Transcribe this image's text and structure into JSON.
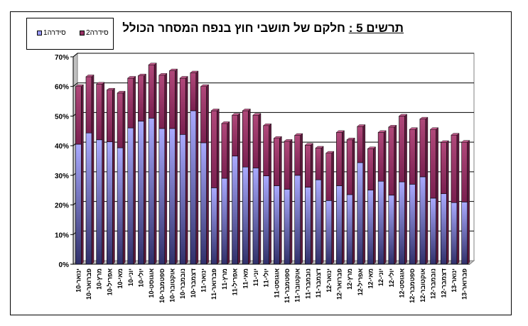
{
  "chart_data": {
    "type": "bar",
    "stacked": true,
    "title_prefix": "תרשים 5",
    "title_sep": " :",
    "title_text": " חלקם של תושבי חוץ בנפח המסחר הכולל",
    "categories": [
      "ינואר-10",
      "פברואר-10",
      "מרץ-10",
      "אפריל-10",
      "מאי-10",
      "יוני-10",
      "יולי-10",
      "אוגוסט-10",
      "ספטמבר-10",
      "אוקטובר-10",
      "נובמבר-10",
      "דצמבר-10",
      "ינואר-11",
      "פברואר-11",
      "מרץ-11",
      "אפריל-11",
      "מאי-11",
      "יוני-11",
      "יולי-11",
      "אוגוסט-11",
      "ספטמבר-11",
      "אוקטובר-11",
      "נובמבר-11",
      "דצמבר-11",
      "ינואר-12",
      "פברואר-12",
      "מרץ-12",
      "אפריל-12",
      "מאי-12",
      "יוני-12",
      "יולי-12",
      "אוגוסט-12",
      "ספטמבר-12",
      "אוקטובר-12",
      "נובמבר-12",
      "דצמבר-12",
      "ינואר-13",
      "פברואר-13"
    ],
    "series": [
      {
        "name": "סידרה1",
        "color": "#9999ff",
        "values": [
          40.5,
          44.3,
          42.0,
          41.3,
          39.3,
          46.0,
          48.3,
          49.3,
          45.8,
          45.8,
          43.8,
          51.8,
          41.0,
          25.8,
          29.0,
          36.5,
          32.8,
          32.5,
          29.8,
          26.5,
          25.3,
          30.0,
          26.0,
          28.5,
          21.5,
          26.5,
          23.5,
          34.3,
          25.0,
          28.0,
          23.3,
          27.8,
          27.0,
          29.5,
          22.3,
          23.8,
          20.8,
          21.0
        ]
      },
      {
        "name": "סידרה2",
        "color": "#993366",
        "values": [
          19.5,
          19.0,
          18.8,
          17.5,
          18.5,
          16.8,
          15.3,
          18.0,
          18.0,
          19.5,
          19.0,
          12.8,
          19.0,
          26.0,
          18.5,
          13.8,
          19.0,
          17.8,
          17.0,
          16.0,
          16.2,
          13.5,
          14.2,
          10.7,
          16.0,
          18.0,
          18.5,
          12.2,
          14.0,
          16.5,
          23.0,
          22.2,
          18.5,
          19.5,
          23.2,
          17.3,
          22.8,
          20.2
        ]
      }
    ],
    "y_tick_labels": [
      "0%",
      "10%",
      "20%",
      "30%",
      "40%",
      "50%",
      "60%",
      "70%"
    ],
    "ylim": [
      0,
      70
    ],
    "grid": true,
    "legend": "top-left"
  }
}
